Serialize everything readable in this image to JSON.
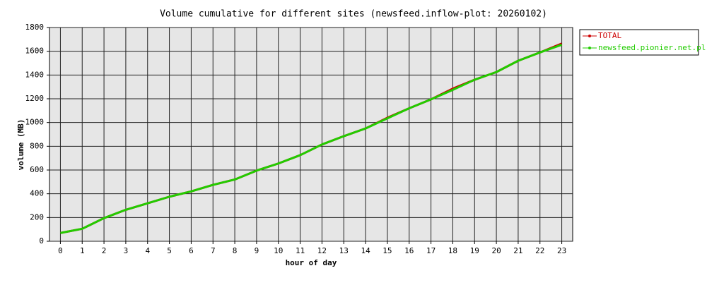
{
  "chart_data": {
    "type": "line",
    "title": "Volume cumulative for different sites (newsfeed.inflow-plot: 20260102)",
    "xlabel": "hour of day",
    "ylabel": "volume (MB)",
    "x": [
      0,
      1,
      2,
      3,
      4,
      5,
      6,
      7,
      8,
      9,
      10,
      11,
      12,
      13,
      14,
      15,
      16,
      17,
      18,
      19,
      20,
      21,
      22,
      23
    ],
    "xlim": [
      -0.5,
      23.5
    ],
    "xticks": [
      0,
      1,
      2,
      3,
      4,
      5,
      6,
      7,
      8,
      9,
      10,
      11,
      12,
      13,
      14,
      15,
      16,
      17,
      18,
      19,
      20,
      21,
      22,
      23
    ],
    "ylim": [
      0,
      1800
    ],
    "yticks": [
      0,
      200,
      400,
      600,
      800,
      1000,
      1200,
      1400,
      1600,
      1800
    ],
    "grid": true,
    "legend": "outside-right",
    "series": [
      {
        "name": "TOTAL",
        "color": "#cc0000",
        "values": [
          70,
          105,
          195,
          265,
          320,
          375,
          420,
          475,
          520,
          595,
          655,
          725,
          815,
          885,
          950,
          1040,
          1120,
          1195,
          1285,
          1360,
          1425,
          1520,
          1590,
          1665
        ]
      },
      {
        "name": "newsfeed.pionier.net.pl",
        "color": "#22cc00",
        "values": [
          70,
          105,
          195,
          265,
          320,
          375,
          420,
          475,
          520,
          595,
          655,
          725,
          815,
          885,
          950,
          1035,
          1120,
          1195,
          1275,
          1360,
          1425,
          1520,
          1590,
          1655
        ]
      }
    ]
  }
}
